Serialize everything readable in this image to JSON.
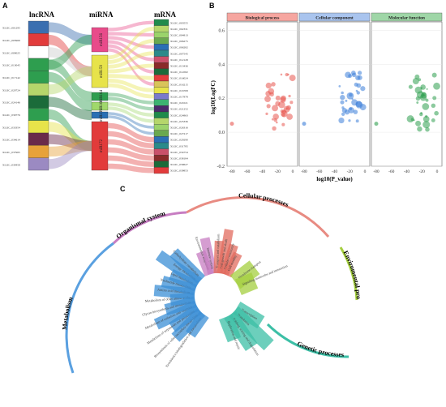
{
  "panels": {
    "a": {
      "label": "A"
    },
    "b": {
      "label": "B"
    },
    "c": {
      "label": "C"
    }
  },
  "sankey": {
    "col_titles": {
      "lnc": "lncRNA",
      "mi": "miRNA",
      "m": "mRNA"
    },
    "lnc_ids": [
      "XLOC_001295",
      "XLOC_003969",
      "XLOC_009025",
      "XLOC_013045",
      "XLOC_017142",
      "XLOC_020724",
      "XLOC_024146",
      "XLOC_030776",
      "XLOC_033354",
      "XLOC_034614",
      "XLOC_037965",
      "XLOC_039458"
    ],
    "mirna": [
      "miR156",
      "miR159",
      "miR164",
      "miR169",
      "miR170",
      "miR172"
    ],
    "mrna_ids": [
      "XLOC_003555",
      "XLOC_002331",
      "XLOC_004813",
      "XLOC_006275",
      "XLOC_006282",
      "XLOC_007545",
      "XLOC_012128",
      "XLOC_013436",
      "XLOC_014582",
      "XLOC_016024",
      "XLOC_016215",
      "XLOC_016708",
      "XLOC_017878",
      "XLOC_021021",
      "XLOC_021252",
      "XLOC_024863",
      "XLOC_025336",
      "XLOC_026316",
      "XLOC_027217",
      "XLOC_029290",
      "XLOC_031785",
      "XLOC_034754",
      "XLOC_038184",
      "XLOC_039627",
      "XLOC_039853"
    ]
  },
  "go": {
    "facets": [
      "Biological process",
      "Cellular component",
      "Molecular function"
    ],
    "ylabel": "log10(LogFC)",
    "xlabel": "log10(P_value)",
    "xticks": [
      "-80",
      "-60",
      "-40",
      "-20",
      "0"
    ],
    "yticks": [
      "0.6",
      "0.4",
      "0.2",
      "0.0",
      "-0.2"
    ]
  },
  "kegg": {
    "categories": [
      "Cellular processes",
      "Organismal system",
      "Metabolism",
      "Genetic processes",
      "Enviromental process"
    ],
    "env_terms": [
      "Membrane transport",
      "Signaling molecules and interaction"
    ],
    "cell_terms": [
      "Transport and catabolism",
      "Cell growth and death",
      "Cellular community",
      "Cell motility"
    ],
    "org_terms": [
      "Environmental adaptation",
      "Immune system"
    ],
    "gen_terms": [
      "Transcription",
      "Translation",
      "Folding, sorting and degradation",
      "Replication and repair"
    ],
    "met_terms": [
      "Xenobiotics biodegradation and metabolism",
      "Biosynthesis of other secondary metabolites",
      "Metabolism of terpenoids and polyketides",
      "Metabolism of cofactors and vitamins",
      "Glycan biosynthesis and metabolism",
      "Metabolism of other amino acids",
      "Amino acid metabolism",
      "Nucleotide metabolism",
      "Lipid metabolism",
      "Energy metabolism",
      "Carbohydrate metabolism"
    ]
  },
  "colors": {
    "bp": "#e8554e",
    "cc": "#3b7dd8",
    "mf": "#2e9e4f",
    "cell": "#e26b5e",
    "org": "#c77dc2",
    "met": "#3c8fd6",
    "gen": "#3cbfa6",
    "env": "#a5cf3f"
  }
}
